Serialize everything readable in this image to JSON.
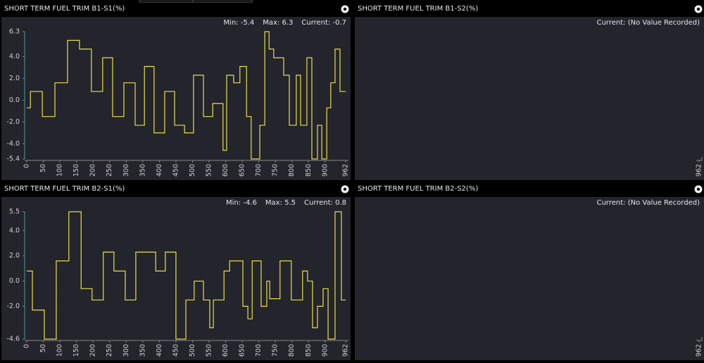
{
  "chart_data": [
    {
      "type": "line",
      "step": "post",
      "title": "SHORT TERM FUEL TRIM B1-S1(%)",
      "stats": [
        "Min: -5.4",
        "Max: 6.3",
        "Current: -0.7"
      ],
      "xlim": [
        0,
        962
      ],
      "ylim": [
        -5.4,
        6.3
      ],
      "xticks": [
        0,
        50,
        100,
        150,
        200,
        250,
        300,
        350,
        400,
        450,
        500,
        550,
        600,
        650,
        700,
        750,
        800,
        850,
        900,
        962
      ],
      "yticks": [
        6.3,
        {
          "value": 4,
          "label": "4.0"
        },
        {
          "value": 2,
          "label": "2.0"
        },
        {
          "value": 0,
          "label": "0.0"
        },
        {
          "value": -2,
          "label": "-2.0"
        },
        {
          "value": -4,
          "label": "-4.0"
        },
        -5.4
      ],
      "color": "#e6e04a",
      "x": [
        0,
        11,
        47,
        85,
        123,
        159,
        195,
        229,
        259,
        293,
        327,
        355,
        384,
        416,
        446,
        476,
        503,
        533,
        561,
        592,
        603,
        624,
        643,
        663,
        677,
        703,
        718,
        731,
        745,
        775,
        792,
        813,
        826,
        845,
        860,
        877,
        890,
        905,
        917,
        930,
        945,
        962
      ],
      "values": [
        -0.7,
        0.8,
        -1.5,
        1.6,
        5.5,
        4.7,
        0.8,
        3.9,
        -1.5,
        1.6,
        -2.3,
        3.1,
        -3.0,
        0.8,
        -2.3,
        -3.0,
        2.3,
        -1.5,
        -0.3,
        -4.6,
        2.3,
        1.6,
        3.1,
        -1.5,
        -5.4,
        -2.3,
        6.3,
        4.7,
        3.9,
        2.3,
        -2.3,
        2.3,
        -2.3,
        3.9,
        -5.4,
        -2.3,
        -5.4,
        -0.7,
        1.6,
        4.7,
        0.8,
        0.8
      ]
    },
    {
      "type": "line",
      "step": "post",
      "title": "SHORT TERM FUEL TRIM B1-S2(%)",
      "stats": [
        "Current: (No Value Recorded)"
      ],
      "xlim": [
        0,
        962
      ],
      "xticks": [
        962
      ]
    },
    {
      "type": "line",
      "step": "post",
      "title": "SHORT TERM FUEL TRIM B2-S1(%)",
      "stats": [
        "Min: -4.6",
        "Max: 5.5",
        "Current: 0.8"
      ],
      "xlim": [
        0,
        962
      ],
      "ylim": [
        -4.6,
        5.5
      ],
      "xticks": [
        0,
        50,
        100,
        150,
        200,
        250,
        300,
        350,
        400,
        450,
        500,
        550,
        600,
        650,
        700,
        750,
        800,
        850,
        900,
        962
      ],
      "yticks": [
        5.5,
        {
          "value": 4,
          "label": "4.0"
        },
        {
          "value": 2,
          "label": "2.0"
        },
        {
          "value": 0,
          "label": "0.0"
        },
        {
          "value": -2,
          "label": "-2.0"
        },
        -4.6
      ],
      "color": "#e6e04a",
      "x": [
        0,
        17,
        53,
        89,
        127,
        164,
        197,
        231,
        263,
        297,
        329,
        389,
        418,
        450,
        480,
        505,
        533,
        552,
        563,
        595,
        612,
        652,
        667,
        680,
        707,
        724,
        733,
        764,
        798,
        832,
        847,
        862,
        877,
        894,
        909,
        930,
        949,
        962
      ],
      "values": [
        0.8,
        -2.3,
        -4.6,
        1.6,
        5.5,
        -0.6,
        -1.5,
        2.3,
        0.8,
        -1.5,
        2.3,
        0.8,
        2.3,
        -4.6,
        -1.5,
        0.0,
        -1.5,
        -3.7,
        -1.5,
        0.8,
        1.6,
        -2.0,
        -3.0,
        1.6,
        -2.0,
        0.0,
        -1.4,
        1.6,
        -1.5,
        0.8,
        0.0,
        -3.7,
        -2.0,
        -0.6,
        -4.6,
        5.5,
        -1.5,
        -1.5
      ]
    },
    {
      "type": "line",
      "step": "post",
      "title": "SHORT TERM FUEL TRIM B2-S2(%)",
      "stats": [
        "Current: (No Value Recorded)"
      ],
      "xlim": [
        0,
        962
      ],
      "xticks": [
        962
      ]
    }
  ]
}
